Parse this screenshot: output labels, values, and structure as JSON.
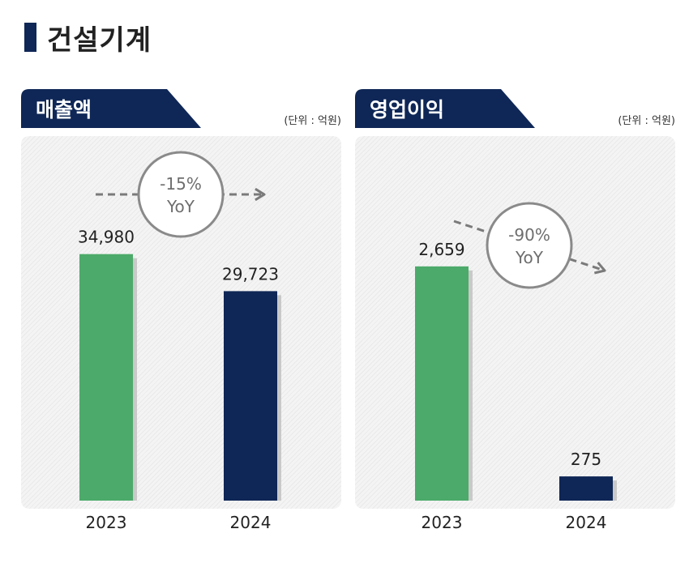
{
  "page": {
    "title": "건설기계"
  },
  "chart_data": [
    {
      "type": "bar",
      "title": "매출액",
      "unit": "(단위 : 억원)",
      "categories": [
        "2023",
        "2024"
      ],
      "values": [
        34980,
        29723
      ],
      "value_labels": [
        "34,980",
        "29,723"
      ],
      "colors": [
        "#4caa6a",
        "#0f2756"
      ],
      "annotation": {
        "line1": "-15%",
        "line2": "YoY"
      },
      "ylim": [
        0,
        40000
      ],
      "xlabel": "",
      "ylabel": "",
      "grid": false
    },
    {
      "type": "bar",
      "title": "영업이익",
      "unit": "(단위 : 억원)",
      "categories": [
        "2023",
        "2024"
      ],
      "values": [
        2659,
        275
      ],
      "value_labels": [
        "2,659",
        "275"
      ],
      "colors": [
        "#4caa6a",
        "#0f2756"
      ],
      "annotation": {
        "line1": "-90%",
        "line2": "YoY"
      },
      "ylim": [
        0,
        3200
      ],
      "xlabel": "",
      "ylabel": "",
      "grid": false
    }
  ]
}
